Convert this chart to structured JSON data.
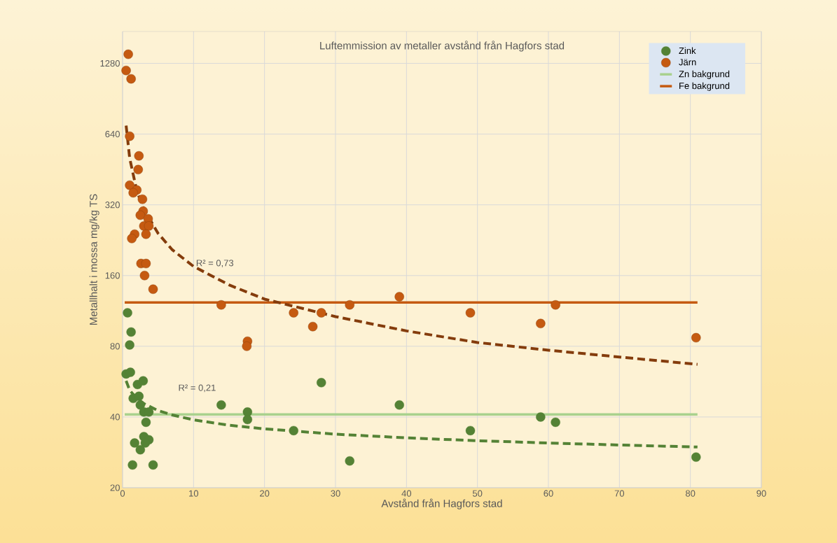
{
  "chart_data": {
    "type": "scatter",
    "title": "Luftemmission av metaller avstånd från Hagfors stad",
    "xlabel": "Avstånd från Hagfors stad",
    "ylabel": "Metallhalt i mossa mg/kg TS",
    "log": "y",
    "grid": true,
    "legend": "top right",
    "xlim": [
      0,
      90
    ],
    "xticks": [
      0,
      10,
      20,
      30,
      40,
      50,
      60,
      70,
      80,
      90
    ],
    "ylim": [
      20,
      1750
    ],
    "yticks": [
      20,
      40,
      80,
      160,
      320,
      640,
      1280
    ],
    "annotations": [
      "R² = 0,73",
      "R² = 0,21"
    ],
    "series": [
      {
        "name": "Zink",
        "marker": "circle",
        "color": "#548235",
        "x": [
          0.7,
          1.2,
          1.0,
          0.5,
          1.1,
          2.1,
          1.5,
          2.3,
          2.9,
          2.5,
          3.0,
          3.7,
          3.3,
          3.0,
          3.7,
          1.7,
          3.2,
          2.5,
          1.4,
          4.3,
          13.9,
          17.6,
          17.6,
          24.1,
          28.0,
          32.0,
          39.0,
          49.0,
          58.9,
          61.0,
          80.8
        ],
        "values": [
          111,
          92,
          81,
          61,
          62,
          55,
          48,
          49,
          57,
          45,
          42,
          42,
          38,
          33,
          32,
          31,
          31,
          29,
          25,
          25,
          45,
          42,
          39,
          35,
          56,
          26,
          45,
          35,
          40,
          38,
          27
        ]
      },
      {
        "name": "Järn",
        "marker": "circle",
        "color": "#c55a11",
        "x": [
          0.8,
          0.5,
          1.2,
          1.0,
          2.3,
          2.2,
          1.0,
          2.0,
          1.5,
          2.8,
          2.9,
          2.5,
          3.6,
          3.0,
          3.7,
          1.7,
          3.3,
          1.3,
          2.6,
          3.3,
          3.1,
          4.3,
          13.9,
          17.6,
          17.5,
          24.1,
          26.8,
          28.0,
          32.0,
          39.0,
          49.0,
          58.9,
          61.0,
          80.8
        ],
        "values": [
          1400,
          1194,
          1100,
          627,
          517,
          452,
          388,
          370,
          360,
          338,
          301,
          289,
          279,
          260,
          260,
          240,
          240,
          230,
          180,
          180,
          160,
          140,
          120,
          84,
          80,
          111,
          97,
          111,
          120,
          130,
          111,
          100,
          120,
          87
        ]
      },
      {
        "name": "Zn bakgrund",
        "type": "line",
        "color": "#a9d18e",
        "line_style": "solid",
        "x": [
          0.3,
          81
        ],
        "values": [
          41,
          41
        ]
      },
      {
        "name": "Fe bakgrund",
        "type": "line",
        "color": "#c55a11",
        "line_style": "solid",
        "x": [
          0.3,
          81
        ],
        "values": [
          123,
          123
        ]
      },
      {
        "type": "line",
        "color": "#843c0c",
        "line_style": "dashed",
        "x": [
          0.5,
          1,
          2,
          3,
          5,
          7,
          10,
          15,
          20,
          30,
          40,
          50,
          60,
          70,
          81
        ],
        "values": [
          696,
          506,
          367,
          306,
          242,
          206,
          175,
          146,
          127,
          107,
          93,
          83,
          77,
          72,
          67
        ]
      },
      {
        "type": "line",
        "color": "#548235",
        "line_style": "dashed",
        "x": [
          0.5,
          1,
          2,
          3,
          5,
          7,
          10,
          15,
          20,
          30,
          40,
          50,
          60,
          70,
          81
        ],
        "values": [
          57,
          52,
          48,
          45.6,
          42.6,
          40.8,
          38.9,
          36.9,
          35.6,
          33.8,
          32.6,
          31.7,
          31.0,
          30.4,
          29.8
        ]
      }
    ]
  }
}
